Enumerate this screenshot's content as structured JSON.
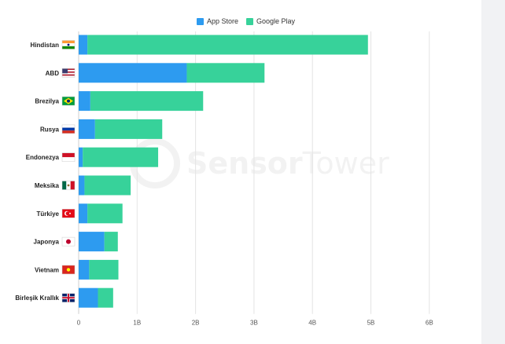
{
  "legend": {
    "app_store": "App Store",
    "google_play": "Google Play"
  },
  "watermark": {
    "strong": "Sensor",
    "light": "Tower"
  },
  "colors": {
    "app_store": "#2d9bf0",
    "google_play": "#37d29a",
    "grid": "#e4e4e4",
    "axis_text": "#555555",
    "label_text": "#222222",
    "background": "#ffffff"
  },
  "chart_data": {
    "type": "bar",
    "orientation": "horizontal",
    "stacked": true,
    "categories": [
      "Hindistan",
      "ABD",
      "Brezilya",
      "Rusya",
      "Endonezya",
      "Meksika",
      "Türkiye",
      "Japonya",
      "Vietnam",
      "Birleşik Krallık"
    ],
    "category_flags": [
      "flag-india-icon",
      "flag-usa-icon",
      "flag-brazil-icon",
      "flag-russia-icon",
      "flag-indonesia-icon",
      "flag-mexico-icon",
      "flag-turkey-icon",
      "flag-japan-icon",
      "flag-vietnam-icon",
      "flag-uk-icon"
    ],
    "series": [
      {
        "name": "App Store",
        "color": "#2d9bf0",
        "values": [
          0.15,
          1.85,
          0.2,
          0.28,
          0.07,
          0.1,
          0.15,
          0.44,
          0.18,
          0.33
        ]
      },
      {
        "name": "Google Play",
        "color": "#37d29a",
        "values": [
          4.8,
          1.33,
          1.93,
          1.15,
          1.29,
          0.79,
          0.6,
          0.23,
          0.5,
          0.26
        ]
      }
    ],
    "x_ticks": [
      "0",
      "1B",
      "2B",
      "3B",
      "4B",
      "5B",
      "6B"
    ],
    "x_tick_values": [
      0,
      1,
      2,
      3,
      4,
      5,
      6
    ],
    "xlim": [
      0,
      6
    ],
    "xlabel": "",
    "ylabel": "",
    "grid": "vertical",
    "legend_position": "top-center"
  }
}
